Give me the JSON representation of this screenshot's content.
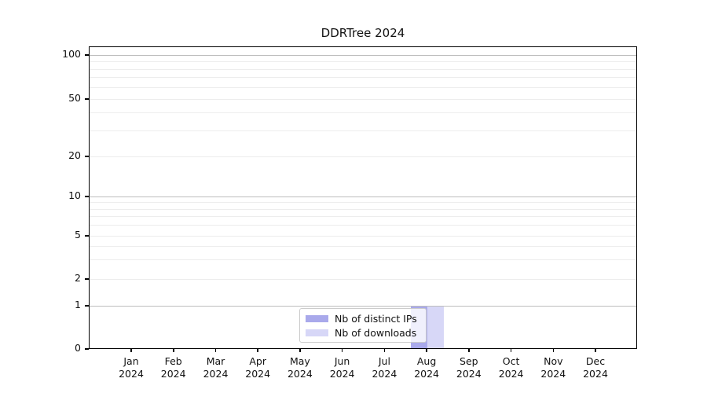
{
  "title": "DDRTree 2024",
  "chart_data": {
    "type": "bar",
    "title": "DDRTree 2024",
    "categories": [
      "Jan",
      "Feb",
      "Mar",
      "Apr",
      "May",
      "Jun",
      "Jul",
      "Aug",
      "Sep",
      "Oct",
      "Nov",
      "Dec"
    ],
    "category_year": "2024",
    "y_ticks": [
      0,
      1,
      2,
      5,
      10,
      20,
      50,
      100
    ],
    "y_scale": "log-like with 0 baseline",
    "ylim": [
      0,
      130
    ],
    "grid": "horizontal major and minor gridlines",
    "legend_position": "inside bottom-center",
    "series": [
      {
        "name": "Nb of distinct IPs",
        "color": "#a9a9eb",
        "values": [
          0,
          0,
          0,
          0,
          0,
          0,
          0,
          1,
          0,
          0,
          0,
          0
        ]
      },
      {
        "name": "Nb of downloads",
        "color": "#d7d7f7",
        "values": [
          0,
          0,
          0,
          0,
          0,
          0,
          0,
          1,
          0,
          0,
          0,
          0
        ]
      }
    ]
  },
  "legend": {
    "items": [
      {
        "label": "Nb of distinct IPs",
        "color": "#a9a9eb"
      },
      {
        "label": "Nb of downloads",
        "color": "#d7d7f7"
      }
    ]
  }
}
